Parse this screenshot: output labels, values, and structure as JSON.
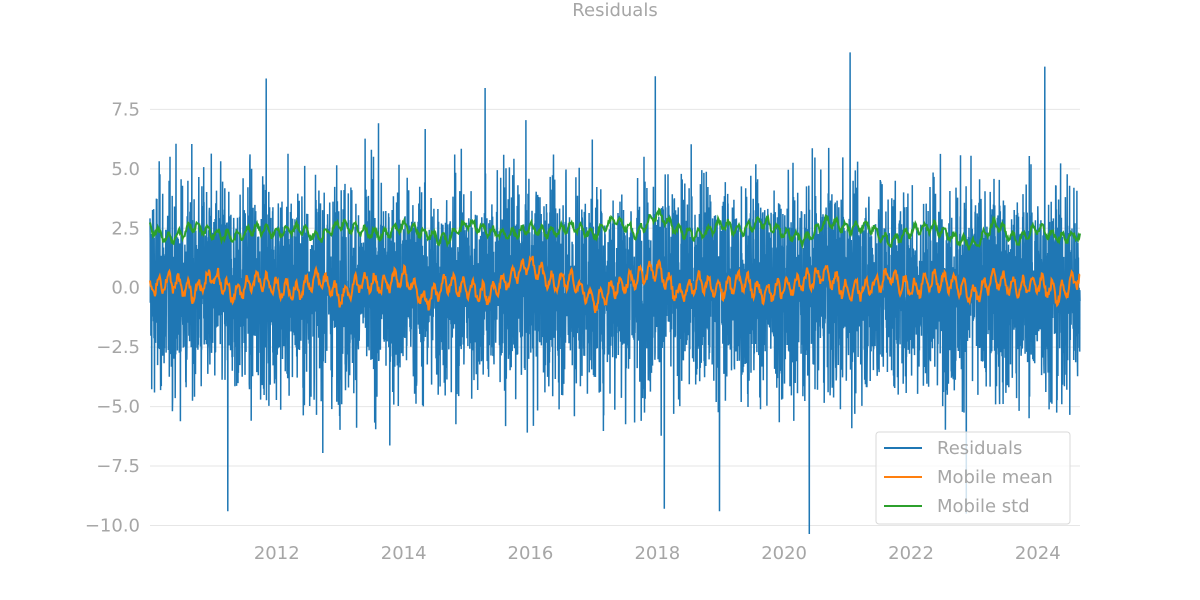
{
  "chart_data": {
    "type": "line",
    "title": "Residuals",
    "xlabel": "",
    "ylabel": "",
    "xlim": [
      "2010-01-01",
      "2024-08-31"
    ],
    "ylim": [
      -10.4,
      10.0
    ],
    "x_ticks": [
      "2012",
      "2014",
      "2016",
      "2018",
      "2020",
      "2022",
      "2024"
    ],
    "y_ticks": [
      "7.5",
      "5.0",
      "2.5",
      "0.0",
      "−2.5",
      "−5.0",
      "−7.5",
      "−10.0"
    ],
    "grid": "horizontal",
    "legend_placement": "lower-right",
    "series": [
      {
        "name": "Residuals",
        "color": "#1f77b4",
        "style": "daily residuals oscillating roughly between −8 and +8, std ≈ 2.2",
        "x": [
          "2010-01-01",
          "2010-05-01",
          "2010-09-01",
          "2011-01-01",
          "2011-05-01",
          "2011-09-01",
          "2012-01-01",
          "2012-05-01",
          "2012-09-01",
          "2013-01-01",
          "2013-05-01",
          "2013-09-01",
          "2014-01-01",
          "2014-05-01",
          "2014-09-01",
          "2015-01-01",
          "2015-05-01",
          "2015-09-01",
          "2016-01-01",
          "2016-05-01",
          "2016-09-01",
          "2017-01-01",
          "2017-05-01",
          "2017-09-01",
          "2018-01-01",
          "2018-05-01",
          "2018-09-01",
          "2019-01-01",
          "2019-05-01",
          "2019-09-01",
          "2020-01-01",
          "2020-05-01",
          "2020-09-01",
          "2021-01-01",
          "2021-05-01",
          "2021-09-01",
          "2022-01-01",
          "2022-05-01",
          "2022-09-01",
          "2023-01-01",
          "2023-05-01",
          "2023-09-01",
          "2024-01-01",
          "2024-05-01",
          "2024-08-31"
        ],
        "extremes": [
          {
            "x": "2011-03-25",
            "y": -9.4
          },
          {
            "x": "2011-11-01",
            "y": 8.8
          },
          {
            "x": "2015-04-15",
            "y": 8.4
          },
          {
            "x": "2017-12-20",
            "y": 8.9
          },
          {
            "x": "2018-02-10",
            "y": -9.3
          },
          {
            "x": "2018-12-25",
            "y": -9.4
          },
          {
            "x": "2020-05-25",
            "y": -10.7
          },
          {
            "x": "2021-01-15",
            "y": 9.9
          },
          {
            "x": "2022-11-15",
            "y": -9.5
          },
          {
            "x": "2024-02-10",
            "y": 9.3
          }
        ]
      },
      {
        "name": "Mobile mean",
        "color": "#ff7f0e",
        "x": [
          "2010-01-01",
          "2010-05-01",
          "2010-09-01",
          "2011-01-01",
          "2011-05-01",
          "2011-09-01",
          "2012-01-01",
          "2012-05-01",
          "2012-09-01",
          "2013-01-01",
          "2013-05-01",
          "2013-09-01",
          "2014-01-01",
          "2014-05-01",
          "2014-09-01",
          "2015-01-01",
          "2015-05-01",
          "2015-09-01",
          "2016-01-01",
          "2016-05-01",
          "2016-09-01",
          "2017-01-01",
          "2017-05-01",
          "2017-09-01",
          "2018-01-01",
          "2018-05-01",
          "2018-09-01",
          "2019-01-01",
          "2019-05-01",
          "2019-09-01",
          "2020-01-01",
          "2020-05-01",
          "2020-09-01",
          "2021-01-01",
          "2021-05-01",
          "2021-09-01",
          "2022-01-01",
          "2022-05-01",
          "2022-09-01",
          "2023-01-01",
          "2023-05-01",
          "2023-09-01",
          "2024-01-01",
          "2024-05-01",
          "2024-08-31"
        ],
        "values": [
          0.0,
          0.3,
          -0.2,
          0.5,
          -0.3,
          0.4,
          0.0,
          -0.2,
          0.5,
          -0.4,
          0.3,
          0.1,
          0.5,
          -0.6,
          0.2,
          0.0,
          -0.3,
          0.4,
          1.0,
          0.2,
          0.3,
          -0.6,
          0.0,
          0.4,
          0.8,
          -0.3,
          0.2,
          -0.1,
          0.3,
          -0.2,
          0.0,
          0.3,
          0.6,
          -0.2,
          0.0,
          0.5,
          -0.1,
          0.3,
          0.2,
          -0.3,
          0.4,
          0.0,
          0.2,
          -0.3,
          0.5
        ]
      },
      {
        "name": "Mobile std",
        "color": "#2ca02c",
        "x": [
          "2010-01-01",
          "2010-05-01",
          "2010-09-01",
          "2011-01-01",
          "2011-05-01",
          "2011-09-01",
          "2012-01-01",
          "2012-05-01",
          "2012-09-01",
          "2013-01-01",
          "2013-05-01",
          "2013-09-01",
          "2014-01-01",
          "2014-05-01",
          "2014-09-01",
          "2015-01-01",
          "2015-05-01",
          "2015-09-01",
          "2016-01-01",
          "2016-05-01",
          "2016-09-01",
          "2017-01-01",
          "2017-05-01",
          "2017-09-01",
          "2018-01-01",
          "2018-05-01",
          "2018-09-01",
          "2019-01-01",
          "2019-05-01",
          "2019-09-01",
          "2020-01-01",
          "2020-05-01",
          "2020-09-01",
          "2021-01-01",
          "2021-05-01",
          "2021-09-01",
          "2022-01-01",
          "2022-05-01",
          "2022-09-01",
          "2023-01-01",
          "2023-05-01",
          "2023-09-01",
          "2024-01-01",
          "2024-05-01",
          "2024-08-31"
        ],
        "values": [
          2.5,
          2.0,
          2.6,
          2.3,
          2.1,
          2.5,
          2.3,
          2.5,
          2.1,
          2.7,
          2.4,
          2.2,
          2.6,
          2.3,
          2.0,
          2.7,
          2.4,
          2.2,
          2.5,
          2.3,
          2.6,
          2.2,
          2.9,
          2.3,
          3.1,
          2.4,
          2.2,
          2.7,
          2.4,
          2.8,
          2.3,
          2.0,
          2.8,
          2.5,
          2.6,
          1.9,
          2.4,
          2.6,
          2.1,
          1.8,
          2.7,
          2.0,
          2.5,
          2.1,
          2.2
        ]
      }
    ]
  }
}
